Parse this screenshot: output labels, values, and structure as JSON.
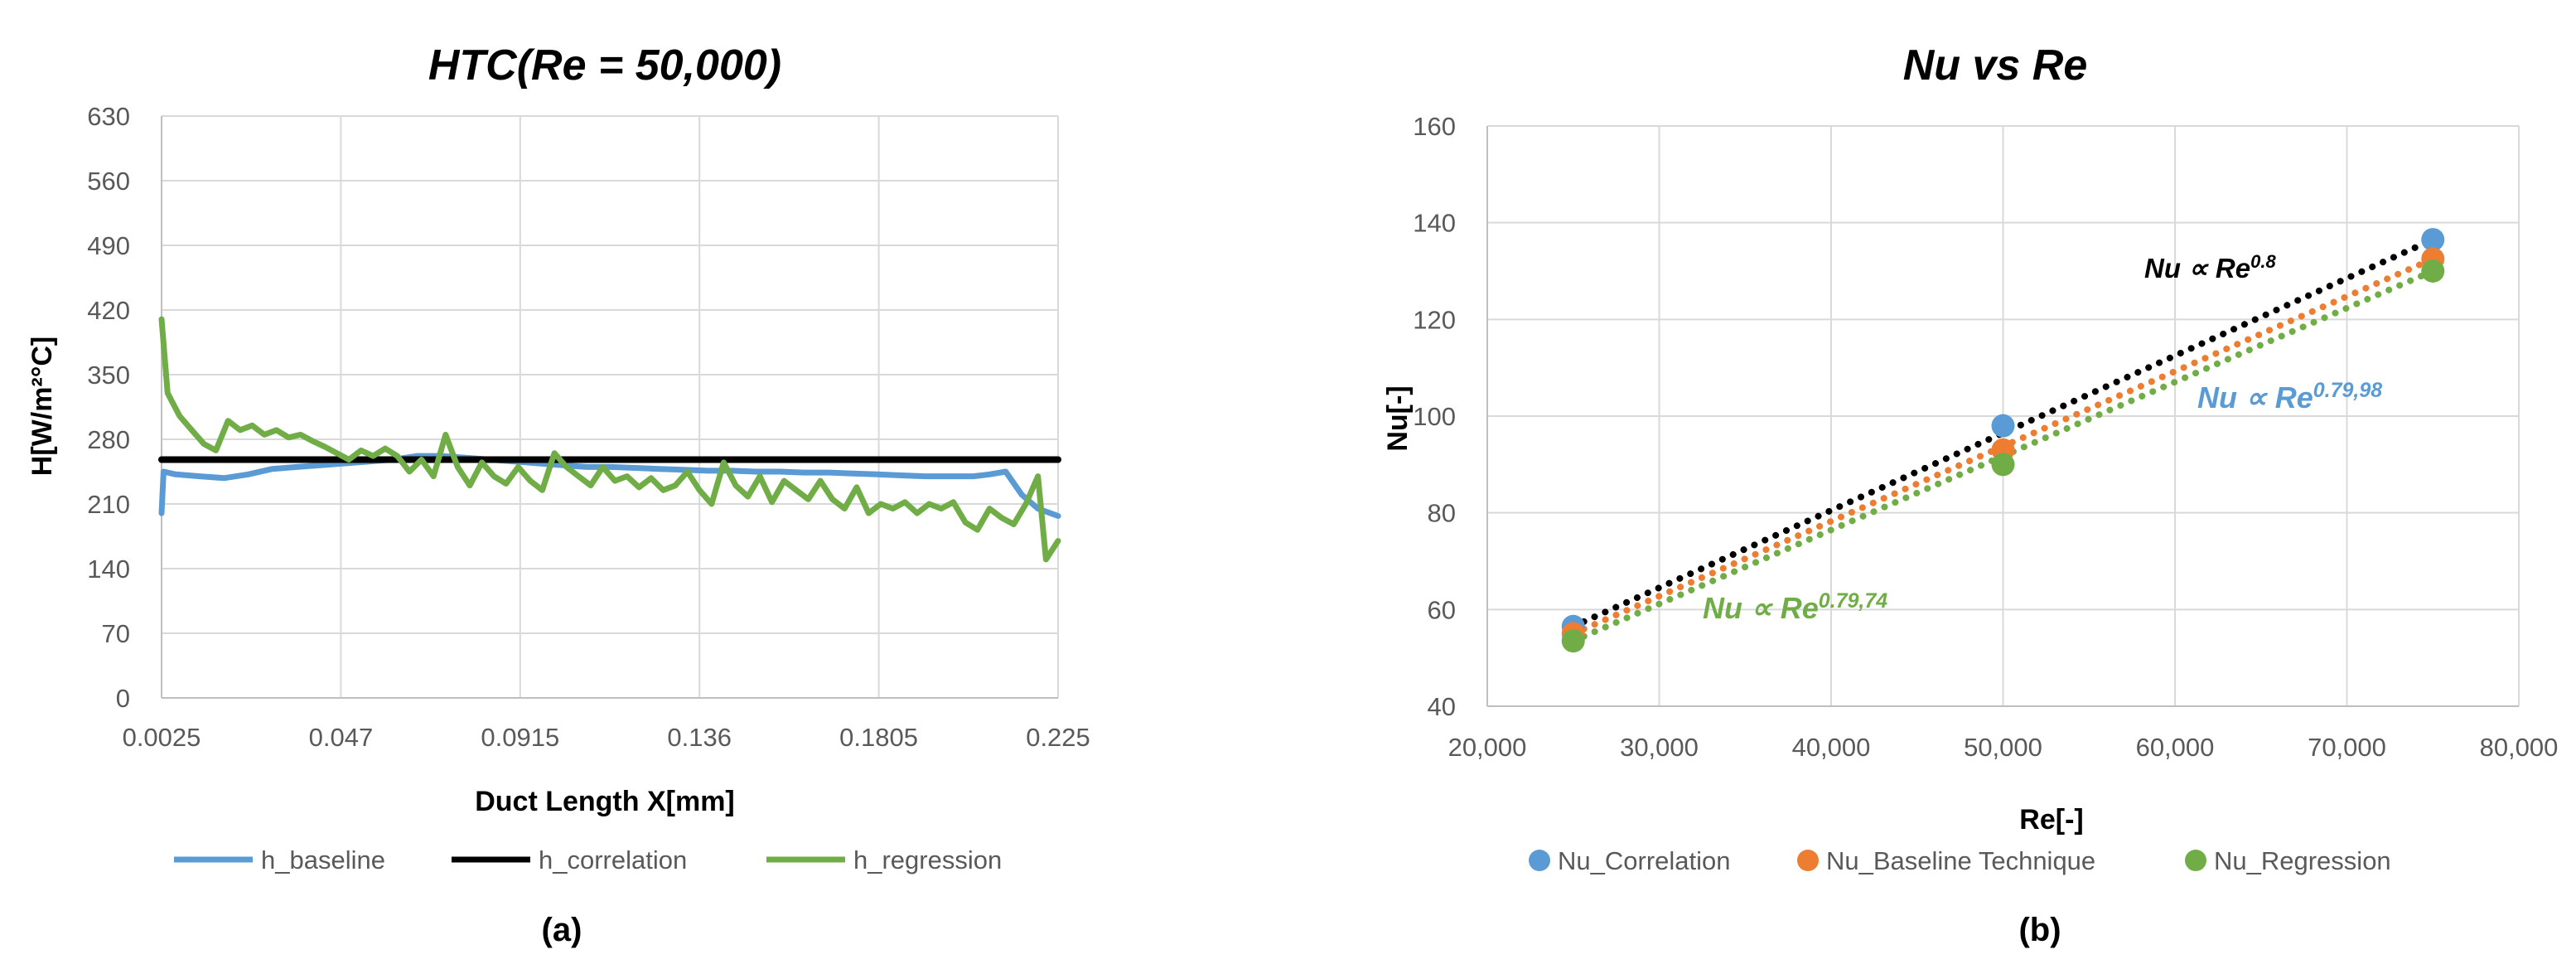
{
  "chart_data": [
    {
      "type": "line",
      "title": "HTC(Re = 50,000)",
      "xlabel": "Duct Length X[mm]",
      "ylabel": "H[W/m²°C]",
      "x_ticks": [
        "0.0025",
        "0.047",
        "0.0915",
        "0.136",
        "0.1805",
        "0.225"
      ],
      "xlim": [
        0.0025,
        0.225
      ],
      "ylim": [
        0,
        630
      ],
      "y_ticks": [
        0,
        70,
        140,
        210,
        280,
        350,
        420,
        490,
        560,
        630
      ],
      "grid": true,
      "legend_position": "bottom",
      "panel_label": "(a)",
      "series": [
        {
          "name": "h_baseline",
          "color": "#5b9bd5",
          "points": [
            [
              0.0025,
              200
            ],
            [
              0.003,
              245
            ],
            [
              0.006,
              242
            ],
            [
              0.012,
              240
            ],
            [
              0.018,
              238
            ],
            [
              0.024,
              242
            ],
            [
              0.03,
              248
            ],
            [
              0.036,
              250
            ],
            [
              0.042,
              252
            ],
            [
              0.048,
              254
            ],
            [
              0.054,
              256
            ],
            [
              0.06,
              258
            ],
            [
              0.066,
              262
            ],
            [
              0.072,
              262
            ],
            [
              0.078,
              260
            ],
            [
              0.084,
              258
            ],
            [
              0.09,
              256
            ],
            [
              0.096,
              254
            ],
            [
              0.102,
              252
            ],
            [
              0.108,
              250
            ],
            [
              0.114,
              250
            ],
            [
              0.12,
              249
            ],
            [
              0.126,
              248
            ],
            [
              0.132,
              247
            ],
            [
              0.138,
              246
            ],
            [
              0.144,
              246
            ],
            [
              0.15,
              245
            ],
            [
              0.156,
              245
            ],
            [
              0.162,
              244
            ],
            [
              0.168,
              244
            ],
            [
              0.174,
              243
            ],
            [
              0.18,
              242
            ],
            [
              0.186,
              241
            ],
            [
              0.192,
              240
            ],
            [
              0.198,
              240
            ],
            [
              0.204,
              240
            ],
            [
              0.208,
              242
            ],
            [
              0.212,
              245
            ],
            [
              0.216,
              220
            ],
            [
              0.22,
              205
            ],
            [
              0.225,
              197
            ]
          ]
        },
        {
          "name": "h_correlation",
          "color": "#000000",
          "points": [
            [
              0.0025,
              258
            ],
            [
              0.225,
              258
            ]
          ]
        },
        {
          "name": "h_regression",
          "color": "#70ad47",
          "points": [
            [
              0.0025,
              410
            ],
            [
              0.004,
              330
            ],
            [
              0.007,
              305
            ],
            [
              0.01,
              290
            ],
            [
              0.013,
              275
            ],
            [
              0.016,
              268
            ],
            [
              0.019,
              300
            ],
            [
              0.022,
              290
            ],
            [
              0.025,
              295
            ],
            [
              0.028,
              285
            ],
            [
              0.031,
              290
            ],
            [
              0.034,
              282
            ],
            [
              0.037,
              285
            ],
            [
              0.04,
              278
            ],
            [
              0.043,
              272
            ],
            [
              0.046,
              265
            ],
            [
              0.049,
              258
            ],
            [
              0.052,
              268
            ],
            [
              0.055,
              262
            ],
            [
              0.058,
              270
            ],
            [
              0.061,
              262
            ],
            [
              0.064,
              245
            ],
            [
              0.067,
              258
            ],
            [
              0.07,
              240
            ],
            [
              0.073,
              285
            ],
            [
              0.076,
              250
            ],
            [
              0.079,
              230
            ],
            [
              0.082,
              255
            ],
            [
              0.085,
              240
            ],
            [
              0.088,
              232
            ],
            [
              0.091,
              250
            ],
            [
              0.094,
              235
            ],
            [
              0.097,
              225
            ],
            [
              0.1,
              265
            ],
            [
              0.103,
              250
            ],
            [
              0.106,
              240
            ],
            [
              0.109,
              230
            ],
            [
              0.112,
              250
            ],
            [
              0.115,
              235
            ],
            [
              0.118,
              240
            ],
            [
              0.121,
              228
            ],
            [
              0.124,
              238
            ],
            [
              0.127,
              225
            ],
            [
              0.13,
              230
            ],
            [
              0.133,
              245
            ],
            [
              0.136,
              225
            ],
            [
              0.139,
              210
            ],
            [
              0.142,
              255
            ],
            [
              0.145,
              230
            ],
            [
              0.148,
              218
            ],
            [
              0.151,
              240
            ],
            [
              0.154,
              212
            ],
            [
              0.157,
              235
            ],
            [
              0.16,
              225
            ],
            [
              0.163,
              215
            ],
            [
              0.166,
              235
            ],
            [
              0.169,
              215
            ],
            [
              0.172,
              205
            ],
            [
              0.175,
              228
            ],
            [
              0.178,
              200
            ],
            [
              0.181,
              210
            ],
            [
              0.184,
              205
            ],
            [
              0.187,
              212
            ],
            [
              0.19,
              200
            ],
            [
              0.193,
              210
            ],
            [
              0.196,
              205
            ],
            [
              0.199,
              212
            ],
            [
              0.202,
              190
            ],
            [
              0.205,
              182
            ],
            [
              0.208,
              205
            ],
            [
              0.211,
              195
            ],
            [
              0.214,
              188
            ],
            [
              0.217,
              210
            ],
            [
              0.22,
              240
            ],
            [
              0.222,
              150
            ],
            [
              0.225,
              170
            ]
          ]
        }
      ]
    },
    {
      "type": "scatter",
      "title": "Nu vs Re",
      "xlabel": "Re[-]",
      "ylabel": "Nu[-]",
      "x_ticks": [
        "20,000",
        "30,000",
        "40,000",
        "50,000",
        "60,000",
        "70,000",
        "80,000"
      ],
      "xlim": [
        20000,
        80000
      ],
      "ylim": [
        40,
        160
      ],
      "y_ticks": [
        40,
        60,
        80,
        100,
        120,
        140,
        160
      ],
      "grid": true,
      "legend_position": "bottom",
      "panel_label": "(b)",
      "series": [
        {
          "name": "Nu_Correlation",
          "color": "#5b9bd5",
          "trendline_color": "#000000",
          "points": [
            [
              25000,
              56.5
            ],
            [
              50000,
              98
            ],
            [
              75000,
              136.5
            ]
          ]
        },
        {
          "name": "Nu_Baseline Technique",
          "color": "#ed7d31",
          "trendline_color": "#ed7d31",
          "points": [
            [
              25000,
              55
            ],
            [
              50000,
              93
            ],
            [
              75000,
              132.5
            ]
          ]
        },
        {
          "name": "Nu_Regression",
          "color": "#70ad47",
          "trendline_color": "#70ad47",
          "points": [
            [
              25000,
              53.5
            ],
            [
              50000,
              90
            ],
            [
              75000,
              130
            ]
          ]
        }
      ],
      "annotations": [
        {
          "base": "Nu ∝ Re",
          "exp": "0.8",
          "color": "#000000"
        },
        {
          "base": "Nu ∝ Re",
          "exp": "0.79,98",
          "color": "#5b9bd5"
        },
        {
          "base": "Nu ∝ Re",
          "exp": "0.79,74",
          "color": "#70ad47"
        }
      ]
    }
  ]
}
